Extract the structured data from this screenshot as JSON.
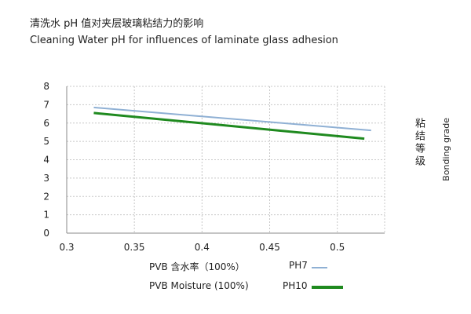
{
  "title_cn": "清洗水 pH 值对夹层玻璃粘结力的影响",
  "title_en": "Cleaning Water pH for influences of laminate glass adhesion",
  "xlabel_cn": "PVB 含水率（100%）",
  "xlabel_en": "PVB Moisture (100%)",
  "ylabel_cn": "粘结等级",
  "ylabel_en": "Bonding grade",
  "chart_data": {
    "type": "line",
    "x_ticks": [
      "0.3",
      "0.35",
      "0.4",
      "0.45",
      "0.5"
    ],
    "y_ticks": [
      "0",
      "1",
      "2",
      "3",
      "4",
      "5",
      "6",
      "7",
      "8"
    ],
    "xlim": [
      0.3,
      0.535
    ],
    "ylim": [
      0,
      8
    ],
    "grid": "dashed vertical and horizontal",
    "legend_position": "bottom-right",
    "series": [
      {
        "name": "PH7",
        "color": "#8fb0d4",
        "x": [
          0.32,
          0.525
        ],
        "y": [
          6.85,
          5.6
        ]
      },
      {
        "name": "PH10",
        "color": "#1f8a1f",
        "x": [
          0.32,
          0.52
        ],
        "y": [
          6.55,
          5.15
        ]
      }
    ]
  }
}
